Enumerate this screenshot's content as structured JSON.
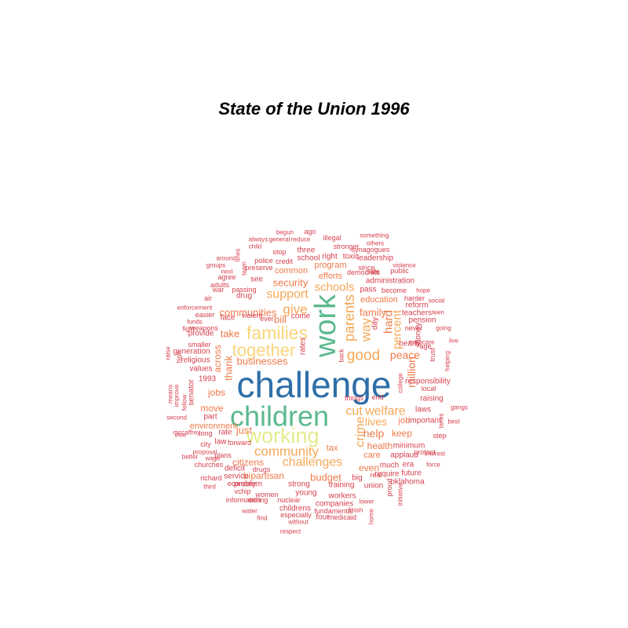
{
  "title": "State of the Union 1996",
  "colors": {
    "dark_red": "#d6404e",
    "orange": "#ef7a4a",
    "light_orange": "#f5a757",
    "yellow": "#fad57c",
    "pale_yellow": "#e3ec8e",
    "green": "#5bb98f",
    "blue": "#2e6fa8"
  },
  "words": [
    {
      "t": "challenge",
      "c": "blue"
    },
    {
      "t": "children",
      "c": "green"
    },
    {
      "t": "work",
      "c": "green"
    },
    {
      "t": "working",
      "c": "pale_yellow"
    },
    {
      "t": "families",
      "c": "yellow"
    },
    {
      "t": "together",
      "c": "yellow"
    },
    {
      "t": "parents",
      "c": "light_orange"
    },
    {
      "t": "good",
      "c": "light_orange"
    },
    {
      "t": "way",
      "c": "light_orange"
    },
    {
      "t": "community",
      "c": "light_orange"
    },
    {
      "t": "challenges",
      "c": "light_orange"
    },
    {
      "t": "welfare",
      "c": "light_orange"
    },
    {
      "t": "cut",
      "c": "light_orange"
    },
    {
      "t": "crime",
      "c": "light_orange"
    },
    {
      "t": "give",
      "c": "light_orange"
    },
    {
      "t": "support",
      "c": "light_orange"
    },
    {
      "t": "schools",
      "c": "light_orange"
    },
    {
      "t": "percent",
      "c": "light_orange"
    },
    {
      "t": "million",
      "c": "orange"
    },
    {
      "t": "hard",
      "c": "orange"
    },
    {
      "t": "peace",
      "c": "orange"
    },
    {
      "t": "lives",
      "c": "light_orange"
    },
    {
      "t": "help",
      "c": "orange"
    },
    {
      "t": "communities",
      "c": "orange"
    },
    {
      "t": "security",
      "c": "orange"
    },
    {
      "t": "family",
      "c": "orange"
    },
    {
      "t": "bill",
      "c": "orange"
    },
    {
      "t": "take",
      "c": "orange"
    },
    {
      "t": "businesses",
      "c": "orange"
    },
    {
      "t": "thank",
      "c": "orange"
    },
    {
      "t": "just",
      "c": "orange"
    },
    {
      "t": "health",
      "c": "orange"
    },
    {
      "t": "budget",
      "c": "orange"
    },
    {
      "t": "citizens",
      "c": "orange"
    },
    {
      "t": "bipartisan",
      "c": "orange"
    },
    {
      "t": "even",
      "c": "orange"
    },
    {
      "t": "keep",
      "c": "orange"
    },
    {
      "t": "job",
      "c": "orange"
    },
    {
      "t": "jobs",
      "c": "orange"
    },
    {
      "t": "efforts",
      "c": "orange"
    },
    {
      "t": "education",
      "c": "orange"
    },
    {
      "t": "care",
      "c": "orange"
    },
    {
      "t": "tax",
      "c": "orange"
    },
    {
      "t": "across",
      "c": "orange"
    },
    {
      "t": "move",
      "c": "orange"
    },
    {
      "t": "environment",
      "c": "orange"
    },
    {
      "t": "common",
      "c": "orange"
    },
    {
      "t": "program",
      "c": "orange"
    },
    {
      "t": "school",
      "c": "dark_red"
    },
    {
      "t": "three",
      "c": "dark_red"
    },
    {
      "t": "right",
      "c": "dark_red"
    },
    {
      "t": "toxic",
      "c": "dark_red"
    },
    {
      "t": "leadership",
      "c": "dark_red"
    },
    {
      "t": "since",
      "c": "dark_red"
    },
    {
      "t": "public",
      "c": "dark_red"
    },
    {
      "t": "violence",
      "c": "dark_red"
    },
    {
      "t": "administration",
      "c": "dark_red"
    },
    {
      "t": "pass",
      "c": "dark_red"
    },
    {
      "t": "become",
      "c": "dark_red"
    },
    {
      "t": "hope",
      "c": "dark_red"
    },
    {
      "t": "harder",
      "c": "dark_red"
    },
    {
      "t": "reform",
      "c": "dark_red"
    },
    {
      "t": "social",
      "c": "dark_red"
    },
    {
      "t": "teachers",
      "c": "dark_red"
    },
    {
      "t": "teen",
      "c": "dark_red"
    },
    {
      "t": "pension",
      "c": "dark_red"
    },
    {
      "t": "never",
      "c": "dark_red"
    },
    {
      "t": "nearly",
      "c": "dark_red"
    },
    {
      "t": "going",
      "c": "dark_red"
    },
    {
      "t": "age",
      "c": "dark_red"
    },
    {
      "t": "live",
      "c": "dark_red"
    },
    {
      "t": "money",
      "c": "dark_red"
    },
    {
      "t": "medicare",
      "c": "dark_red"
    },
    {
      "t": "trust",
      "c": "dark_red"
    },
    {
      "t": "helping",
      "c": "dark_red"
    },
    {
      "t": "responsibility",
      "c": "dark_red"
    },
    {
      "t": "local",
      "c": "dark_red"
    },
    {
      "t": "college",
      "c": "dark_red"
    },
    {
      "t": "raising",
      "c": "dark_red"
    },
    {
      "t": "important",
      "c": "dark_red"
    },
    {
      "t": "laws",
      "c": "dark_red"
    },
    {
      "t": "gangs",
      "c": "dark_red"
    },
    {
      "t": "taxes",
      "c": "dark_red"
    },
    {
      "t": "protect",
      "c": "dark_red"
    },
    {
      "t": "best",
      "c": "dark_red"
    },
    {
      "t": "step",
      "c": "dark_red"
    },
    {
      "t": "minimum",
      "c": "dark_red"
    },
    {
      "t": "interest",
      "c": "dark_red"
    },
    {
      "t": "applaud",
      "c": "dark_red"
    },
    {
      "t": "force",
      "c": "dark_red"
    },
    {
      "t": "much",
      "c": "dark_red"
    },
    {
      "t": "era",
      "c": "dark_red"
    },
    {
      "t": "future",
      "c": "dark_red"
    },
    {
      "t": "oklahoma",
      "c": "dark_red"
    },
    {
      "t": "require",
      "c": "dark_red"
    },
    {
      "t": "real",
      "c": "dark_red"
    },
    {
      "t": "big",
      "c": "dark_red"
    },
    {
      "t": "union",
      "c": "dark_red"
    },
    {
      "t": "proud",
      "c": "dark_red"
    },
    {
      "t": "initiative",
      "c": "dark_red"
    },
    {
      "t": "lower",
      "c": "dark_red"
    },
    {
      "t": "finish",
      "c": "dark_red"
    },
    {
      "t": "home",
      "c": "dark_red"
    },
    {
      "t": "training",
      "c": "dark_red"
    },
    {
      "t": "workers",
      "c": "dark_red"
    },
    {
      "t": "companies",
      "c": "dark_red"
    },
    {
      "t": "fundamental",
      "c": "dark_red"
    },
    {
      "t": "medicaid",
      "c": "dark_red"
    },
    {
      "t": "four",
      "c": "dark_red"
    },
    {
      "t": "young",
      "c": "dark_red"
    },
    {
      "t": "strong",
      "c": "dark_red"
    },
    {
      "t": "nuclear",
      "c": "dark_red"
    },
    {
      "t": "childrens",
      "c": "dark_red"
    },
    {
      "t": "especially",
      "c": "dark_red"
    },
    {
      "t": "without",
      "c": "dark_red"
    },
    {
      "t": "respect",
      "c": "dark_red"
    },
    {
      "t": "women",
      "c": "dark_red"
    },
    {
      "t": "find",
      "c": "dark_red"
    },
    {
      "t": "willing",
      "c": "dark_red"
    },
    {
      "t": "water",
      "c": "dark_red"
    },
    {
      "t": "information",
      "c": "dark_red"
    },
    {
      "t": "vchip",
      "c": "dark_red"
    },
    {
      "t": "problem",
      "c": "dark_red"
    },
    {
      "t": "economy",
      "c": "dark_red"
    },
    {
      "t": "third",
      "c": "dark_red"
    },
    {
      "t": "service",
      "c": "dark_red"
    },
    {
      "t": "drugs",
      "c": "dark_red"
    },
    {
      "t": "deficit",
      "c": "dark_red"
    },
    {
      "t": "richard",
      "c": "dark_red"
    },
    {
      "t": "churches",
      "c": "dark_red"
    },
    {
      "t": "wage",
      "c": "dark_red"
    },
    {
      "t": "plans",
      "c": "dark_red"
    },
    {
      "t": "better",
      "c": "dark_red"
    },
    {
      "t": "proposal",
      "c": "dark_red"
    },
    {
      "t": "forward",
      "c": "dark_red"
    },
    {
      "t": "city",
      "c": "dark_red"
    },
    {
      "t": "law",
      "c": "dark_red"
    },
    {
      "t": "rate",
      "c": "dark_red"
    },
    {
      "t": "long",
      "c": "dark_red"
    },
    {
      "t": "else",
      "c": "dark_red"
    },
    {
      "t": "mccaffrey",
      "c": "dark_red"
    },
    {
      "t": "second",
      "c": "dark_red"
    },
    {
      "t": "part",
      "c": "dark_red"
    },
    {
      "t": "fellow",
      "c": "dark_red"
    },
    {
      "t": "improve",
      "c": "dark_red"
    },
    {
      "t": "means",
      "c": "dark_red"
    },
    {
      "t": "senator",
      "c": "dark_red"
    },
    {
      "t": "1993",
      "c": "dark_red"
    },
    {
      "t": "values",
      "c": "dark_red"
    },
    {
      "t": "high",
      "c": "dark_red"
    },
    {
      "t": "raise",
      "c": "dark_red"
    },
    {
      "t": "generation",
      "c": "dark_red"
    },
    {
      "t": "religious",
      "c": "dark_red"
    },
    {
      "t": "smaller",
      "c": "dark_red"
    },
    {
      "t": "provide",
      "c": "dark_red"
    },
    {
      "t": "fight",
      "c": "dark_red"
    },
    {
      "t": "weapons",
      "c": "dark_red"
    },
    {
      "t": "funds",
      "c": "dark_red"
    },
    {
      "t": "easier",
      "c": "dark_red"
    },
    {
      "t": "enforcement",
      "c": "dark_red"
    },
    {
      "t": "face",
      "c": "dark_red"
    },
    {
      "t": "violent",
      "c": "dark_red"
    },
    {
      "t": "ever",
      "c": "dark_red"
    },
    {
      "t": "come",
      "c": "dark_red"
    },
    {
      "t": "air",
      "c": "dark_red"
    },
    {
      "t": "war",
      "c": "dark_red"
    },
    {
      "t": "passing",
      "c": "dark_red"
    },
    {
      "t": "drug",
      "c": "dark_red"
    },
    {
      "t": "adults",
      "c": "dark_red"
    },
    {
      "t": "agree",
      "c": "dark_red"
    },
    {
      "t": "next",
      "c": "dark_red"
    },
    {
      "t": "groups",
      "c": "dark_red"
    },
    {
      "t": "around",
      "c": "dark_red"
    },
    {
      "t": "team",
      "c": "dark_red"
    },
    {
      "t": "lines",
      "c": "dark_red"
    },
    {
      "t": "see",
      "c": "dark_red"
    },
    {
      "t": "preserve",
      "c": "dark_red"
    },
    {
      "t": "police",
      "c": "dark_red"
    },
    {
      "t": "credit",
      "c": "dark_red"
    },
    {
      "t": "stop",
      "c": "dark_red"
    },
    {
      "t": "child",
      "c": "dark_red"
    },
    {
      "t": "always",
      "c": "dark_red"
    },
    {
      "t": "general",
      "c": "dark_red"
    },
    {
      "t": "reduce",
      "c": "dark_red"
    },
    {
      "t": "begun",
      "c": "dark_red"
    },
    {
      "t": "ago",
      "c": "dark_red"
    },
    {
      "t": "illegal",
      "c": "dark_red"
    },
    {
      "t": "stronger",
      "c": "dark_red"
    },
    {
      "t": "something",
      "c": "dark_red"
    },
    {
      "t": "others",
      "c": "dark_red"
    },
    {
      "t": "synagogues",
      "c": "dark_red"
    },
    {
      "t": "democrats",
      "c": "dark_red"
    },
    {
      "t": "safe",
      "c": "dark_red"
    },
    {
      "t": "day",
      "c": "dark_red"
    },
    {
      "t": "rates",
      "c": "dark_red"
    },
    {
      "t": "back",
      "c": "dark_red"
    },
    {
      "t": "things",
      "c": "dark_red"
    },
    {
      "t": "end",
      "c": "dark_red"
    },
    {
      "t": "create",
      "c": "dark_red"
    },
    {
      "t": "basic",
      "c": "dark_red"
    }
  ]
}
